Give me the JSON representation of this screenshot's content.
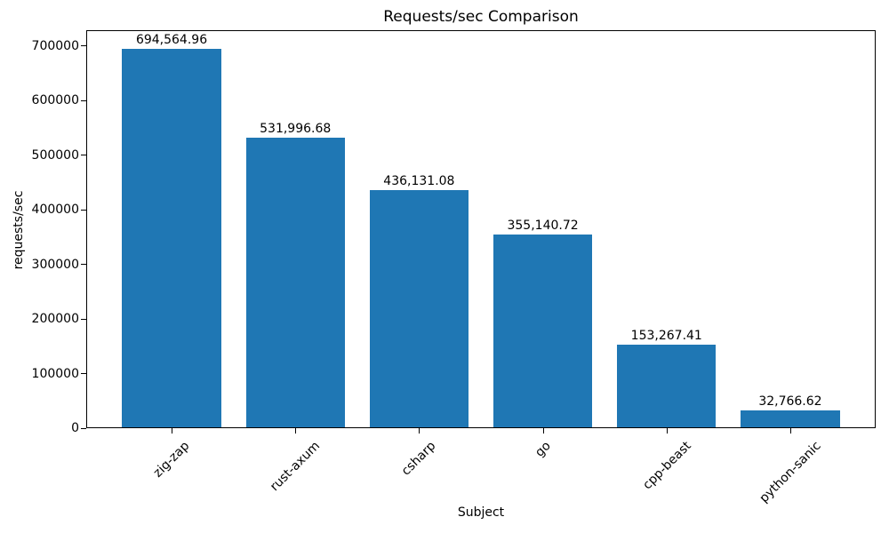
{
  "chart_data": {
    "type": "bar",
    "title": "Requests/sec Comparison",
    "xlabel": "Subject",
    "ylabel": "requests/sec",
    "categories": [
      "zig-zap",
      "rust-axum",
      "csharp",
      "go",
      "cpp-beast",
      "python-sanic"
    ],
    "values": [
      694564.96,
      531996.68,
      436131.08,
      355140.72,
      153267.41,
      32766.62
    ],
    "value_labels": [
      "694,564.96",
      "531,996.68",
      "436,131.08",
      "355,140.72",
      "153,267.41",
      "32,766.62"
    ],
    "yticks": [
      0,
      100000,
      200000,
      300000,
      400000,
      500000,
      600000,
      700000
    ],
    "ytick_labels": [
      "0",
      "100000",
      "200000",
      "300000",
      "400000",
      "500000",
      "600000",
      "700000"
    ],
    "ylim": [
      0,
      729293
    ],
    "bar_width_fraction": 0.8,
    "bar_color": "#1f77b4",
    "text_color": "#000000",
    "spine_color": "#000000",
    "grid": false,
    "legend": null,
    "xtick_rotation_deg": 45
  }
}
